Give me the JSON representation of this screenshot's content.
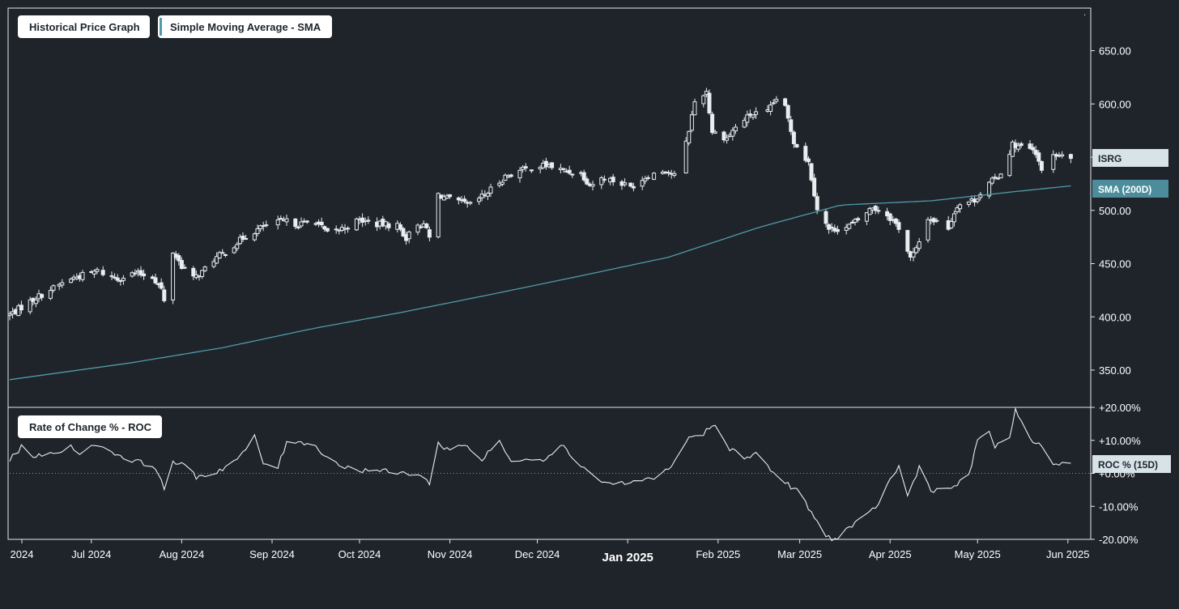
{
  "legend": {
    "price_graph": "Historical Price Graph",
    "sma": "Simple Moving Average - SMA",
    "roc": "Rate of Change % - ROC"
  },
  "badges": {
    "ticker": "ISRG",
    "sma": "SMA (200D)",
    "roc": "ROC % (15D)"
  },
  "colors": {
    "background": "#1f242b",
    "frame": "#e6e9ec",
    "candle": "#e9edf0",
    "sma_line": "#4f9aa6",
    "roc_line": "#e9edf0",
    "ticker_badge": "#d7e3e8",
    "sma_badge": "#4d8d9b",
    "roc_badge": "#d7e3e8",
    "text": "#ffffff"
  },
  "chart_data": [
    {
      "type": "candlestick",
      "id": "price",
      "ticker": "ISRG",
      "ylim": [
        315,
        690
      ],
      "yticks": [
        350,
        400,
        450,
        500,
        550,
        600,
        650
      ],
      "ytick_labels": [
        "350.00",
        "400.00",
        "450.00",
        "500.00",
        "550.00",
        "600.00",
        "650.00"
      ],
      "xlim": [
        "2024-06-03",
        "2025-06-03"
      ],
      "xtick_dates": [
        "2024-06-03",
        "2024-07-01",
        "2024-08-01",
        "2024-09-01",
        "2024-10-01",
        "2024-11-01",
        "2024-12-01",
        "2025-01-01",
        "2025-02-01",
        "2025-03-01",
        "2025-04-01",
        "2025-05-01",
        "2025-06-01"
      ],
      "xtick_labels": [
        "2024",
        "Jul 2024",
        "Aug 2024",
        "Sep 2024",
        "Oct 2024",
        "Nov 2024",
        "Dec 2024",
        "Jan 2025",
        "Feb 2025",
        "Mar 2025",
        "Apr 2025",
        "May 2025",
        "Jun 2025"
      ],
      "anchors": [
        [
          "2024-06-03",
          402
        ],
        [
          "2024-06-12",
          418
        ],
        [
          "2024-06-24",
          436
        ],
        [
          "2024-07-03",
          443
        ],
        [
          "2024-07-10",
          436
        ],
        [
          "2024-07-16",
          441
        ],
        [
          "2024-07-22",
          438
        ],
        [
          "2024-07-25",
          426
        ],
        [
          "2024-07-26",
          414
        ],
        [
          "2024-07-29",
          461
        ],
        [
          "2024-08-01",
          448
        ],
        [
          "2024-08-05",
          436
        ],
        [
          "2024-08-08",
          442
        ],
        [
          "2024-08-12",
          454
        ],
        [
          "2024-08-16",
          461
        ],
        [
          "2024-08-22",
          474
        ],
        [
          "2024-08-29",
          485
        ],
        [
          "2024-09-05",
          490
        ],
        [
          "2024-09-10",
          487
        ],
        [
          "2024-09-16",
          490
        ],
        [
          "2024-09-20",
          478
        ],
        [
          "2024-09-25",
          483
        ],
        [
          "2024-10-01",
          491
        ],
        [
          "2024-10-07",
          487
        ],
        [
          "2024-10-14",
          486
        ],
        [
          "2024-10-17",
          474
        ],
        [
          "2024-10-21",
          488
        ],
        [
          "2024-10-24",
          483
        ],
        [
          "2024-10-25",
          474
        ],
        [
          "2024-10-28",
          515
        ],
        [
          "2024-11-01",
          510
        ],
        [
          "2024-11-08",
          505
        ],
        [
          "2024-11-14",
          517
        ],
        [
          "2024-11-20",
          532
        ],
        [
          "2024-11-26",
          538
        ],
        [
          "2024-12-02",
          542
        ],
        [
          "2024-12-05",
          542
        ],
        [
          "2024-12-10",
          537
        ],
        [
          "2024-12-16",
          535
        ],
        [
          "2024-12-19",
          524
        ],
        [
          "2024-12-24",
          531
        ],
        [
          "2025-01-02",
          522
        ],
        [
          "2025-01-08",
          533
        ],
        [
          "2025-01-14",
          538
        ],
        [
          "2025-01-17",
          533
        ],
        [
          "2025-01-21",
          563
        ],
        [
          "2025-01-24",
          602
        ],
        [
          "2025-01-28",
          612
        ],
        [
          "2025-01-30",
          574
        ],
        [
          "2025-02-04",
          568
        ],
        [
          "2025-02-07",
          578
        ],
        [
          "2025-02-12",
          590
        ],
        [
          "2025-02-18",
          592
        ],
        [
          "2025-02-21",
          605
        ],
        [
          "2025-02-24",
          596
        ],
        [
          "2025-02-27",
          565
        ],
        [
          "2025-03-04",
          545
        ],
        [
          "2025-03-07",
          502
        ],
        [
          "2025-03-11",
          482
        ],
        [
          "2025-03-17",
          484
        ],
        [
          "2025-03-21",
          491
        ],
        [
          "2025-03-26",
          503
        ],
        [
          "2025-03-31",
          496
        ],
        [
          "2025-04-04",
          484
        ],
        [
          "2025-04-08",
          455
        ],
        [
          "2025-04-10",
          463
        ],
        [
          "2025-04-14",
          493
        ],
        [
          "2025-04-21",
          484
        ],
        [
          "2025-04-24",
          505
        ],
        [
          "2025-04-30",
          510
        ],
        [
          "2025-05-05",
          525
        ],
        [
          "2025-05-09",
          535
        ],
        [
          "2025-05-13",
          562
        ],
        [
          "2025-05-20",
          556
        ],
        [
          "2025-05-23",
          540
        ],
        [
          "2025-05-28",
          552
        ],
        [
          "2025-06-02",
          548
        ]
      ],
      "overlay": {
        "name": "SMA (200D)",
        "points": [
          [
            "2024-06-03",
            341
          ],
          [
            "2024-07-15",
            357
          ],
          [
            "2024-08-15",
            371
          ],
          [
            "2024-09-15",
            389
          ],
          [
            "2024-10-15",
            404
          ],
          [
            "2024-11-15",
            421
          ],
          [
            "2024-12-15",
            438
          ],
          [
            "2025-01-15",
            456
          ],
          [
            "2025-02-15",
            484
          ],
          [
            "2025-03-15",
            505
          ],
          [
            "2025-04-15",
            509
          ],
          [
            "2025-05-15",
            518
          ],
          [
            "2025-06-02",
            523
          ]
        ]
      }
    },
    {
      "type": "line",
      "id": "roc",
      "series": [
        {
          "name": "ROC % (15D)"
        }
      ],
      "ylim": [
        -20,
        20
      ],
      "yticks": [
        -20,
        -10,
        0,
        10,
        20
      ],
      "ytick_labels": [
        "-20.00%",
        "-10.00%",
        "+0.00%",
        "+10.00%",
        "+20.00%"
      ],
      "xlim": [
        "2024-06-03",
        "2025-06-03"
      ],
      "points": [
        [
          "2024-06-03",
          4
        ],
        [
          "2024-06-07",
          8
        ],
        [
          "2024-06-12",
          5
        ],
        [
          "2024-06-18",
          6
        ],
        [
          "2024-06-24",
          8
        ],
        [
          "2024-06-28",
          6
        ],
        [
          "2024-07-03",
          9
        ],
        [
          "2024-07-09",
          6
        ],
        [
          "2024-07-15",
          4
        ],
        [
          "2024-07-19",
          3
        ],
        [
          "2024-07-23",
          2
        ],
        [
          "2024-07-26",
          -5
        ],
        [
          "2024-07-29",
          4
        ],
        [
          "2024-08-02",
          2
        ],
        [
          "2024-08-06",
          -1
        ],
        [
          "2024-08-12",
          0
        ],
        [
          "2024-08-16",
          2
        ],
        [
          "2024-08-21",
          5
        ],
        [
          "2024-08-26",
          11
        ],
        [
          "2024-08-29",
          3
        ],
        [
          "2024-09-03",
          2
        ],
        [
          "2024-09-06",
          9
        ],
        [
          "2024-09-10",
          10
        ],
        [
          "2024-09-16",
          8
        ],
        [
          "2024-09-20",
          5
        ],
        [
          "2024-09-25",
          2
        ],
        [
          "2024-10-01",
          1
        ],
        [
          "2024-10-07",
          1
        ],
        [
          "2024-10-14",
          0
        ],
        [
          "2024-10-21",
          0
        ],
        [
          "2024-10-25",
          -3
        ],
        [
          "2024-10-28",
          9
        ],
        [
          "2024-11-01",
          7
        ],
        [
          "2024-11-06",
          9
        ],
        [
          "2024-11-12",
          4
        ],
        [
          "2024-11-18",
          10
        ],
        [
          "2024-11-22",
          3
        ],
        [
          "2024-11-27",
          5
        ],
        [
          "2024-12-03",
          4
        ],
        [
          "2024-12-09",
          9
        ],
        [
          "2024-12-13",
          5
        ],
        [
          "2024-12-18",
          1
        ],
        [
          "2024-12-24",
          -3
        ],
        [
          "2024-12-31",
          -3
        ],
        [
          "2025-01-07",
          -2
        ],
        [
          "2025-01-13",
          0
        ],
        [
          "2025-01-17",
          3
        ],
        [
          "2025-01-21",
          10
        ],
        [
          "2025-01-27",
          12
        ],
        [
          "2025-01-31",
          15
        ],
        [
          "2025-02-04",
          8
        ],
        [
          "2025-02-10",
          5
        ],
        [
          "2025-02-14",
          6
        ],
        [
          "2025-02-18",
          2
        ],
        [
          "2025-02-24",
          -3
        ],
        [
          "2025-02-28",
          -5
        ],
        [
          "2025-03-05",
          -12
        ],
        [
          "2025-03-10",
          -19
        ],
        [
          "2025-03-13",
          -20
        ],
        [
          "2025-03-17",
          -17
        ],
        [
          "2025-03-24",
          -13
        ],
        [
          "2025-03-28",
          -9
        ],
        [
          "2025-04-01",
          -2
        ],
        [
          "2025-04-04",
          2
        ],
        [
          "2025-04-07",
          -7
        ],
        [
          "2025-04-11",
          2
        ],
        [
          "2025-04-15",
          -5
        ],
        [
          "2025-04-21",
          -5
        ],
        [
          "2025-04-28",
          -1
        ],
        [
          "2025-05-01",
          10
        ],
        [
          "2025-05-05",
          13
        ],
        [
          "2025-05-07",
          8
        ],
        [
          "2025-05-12",
          10
        ],
        [
          "2025-05-14",
          20
        ],
        [
          "2025-05-19",
          10
        ],
        [
          "2025-05-23",
          8
        ],
        [
          "2025-05-27",
          3
        ],
        [
          "2025-06-02",
          3
        ]
      ]
    }
  ]
}
